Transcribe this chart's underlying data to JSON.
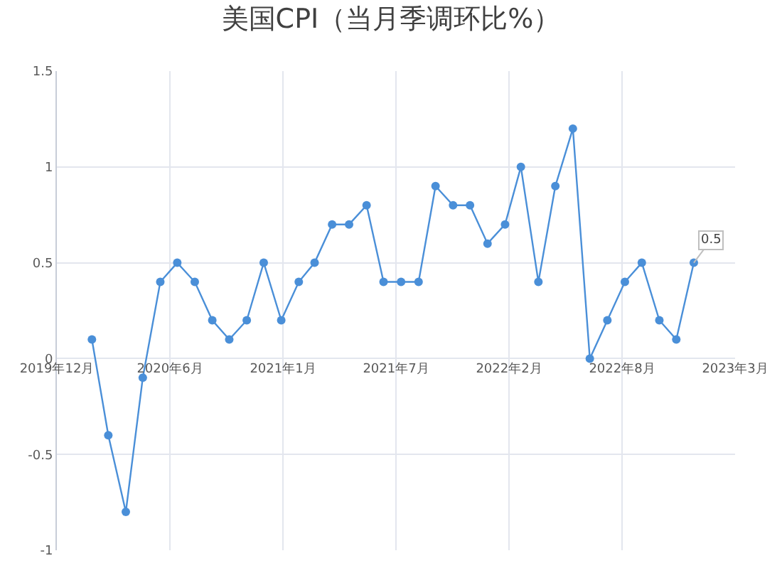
{
  "chart_data": {
    "type": "line",
    "title": "美国CPI（当月季调环比%）",
    "x": [
      "2020-02-01",
      "2020-03-01",
      "2020-04-01",
      "2020-05-01",
      "2020-06-01",
      "2020-07-01",
      "2020-08-01",
      "2020-09-01",
      "2020-10-01",
      "2020-11-01",
      "2020-12-01",
      "2021-01-01",
      "2021-02-01",
      "2021-03-01",
      "2021-04-01",
      "2021-05-01",
      "2021-06-01",
      "2021-07-01",
      "2021-08-01",
      "2021-09-01",
      "2021-10-01",
      "2021-11-01",
      "2021-12-01",
      "2022-01-01",
      "2022-02-01",
      "2022-03-01",
      "2022-04-01",
      "2022-05-01",
      "2022-06-01",
      "2022-07-01",
      "2022-08-01",
      "2022-09-01",
      "2022-10-01",
      "2022-11-01",
      "2022-12-01",
      "2023-01-01"
    ],
    "series": [
      {
        "color": "#4a8fd8",
        "values": [
          0.1,
          -0.4,
          -0.8,
          -0.1,
          0.4,
          0.5,
          0.4,
          0.2,
          0.1,
          0.2,
          0.5,
          0.2,
          0.4,
          0.5,
          0.7,
          0.7,
          0.8,
          0.4,
          0.4,
          0.4,
          0.9,
          0.8,
          0.8,
          0.6,
          0.7,
          1.0,
          0.4,
          0.9,
          1.2,
          0.0,
          0.2,
          0.4,
          0.5,
          0.2,
          0.1,
          0.5
        ]
      }
    ],
    "xlim": [
      "2019-12-01",
      "2023-03-15"
    ],
    "xticks": [
      {
        "value": "2019-12-01",
        "label": "2019年12月"
      },
      {
        "value": "2020-06-18",
        "label": "2020年6月"
      },
      {
        "value": "2021-01-04",
        "label": "2021年1月"
      },
      {
        "value": "2021-07-23",
        "label": "2021年7月"
      },
      {
        "value": "2022-02-08",
        "label": "2022年2月"
      },
      {
        "value": "2022-08-27",
        "label": "2022年8月"
      },
      {
        "value": "2023-03-15",
        "label": "2023年3月"
      }
    ],
    "ylim": [
      -1,
      1.5
    ],
    "yticks": [
      -1,
      -0.5,
      0,
      0.5,
      1,
      1.5
    ],
    "grid": true,
    "marker": "circle",
    "line_style": "solid",
    "annotations": [
      {
        "text": "0.5",
        "x": "2023-01-01",
        "y": 0.5
      }
    ]
  }
}
